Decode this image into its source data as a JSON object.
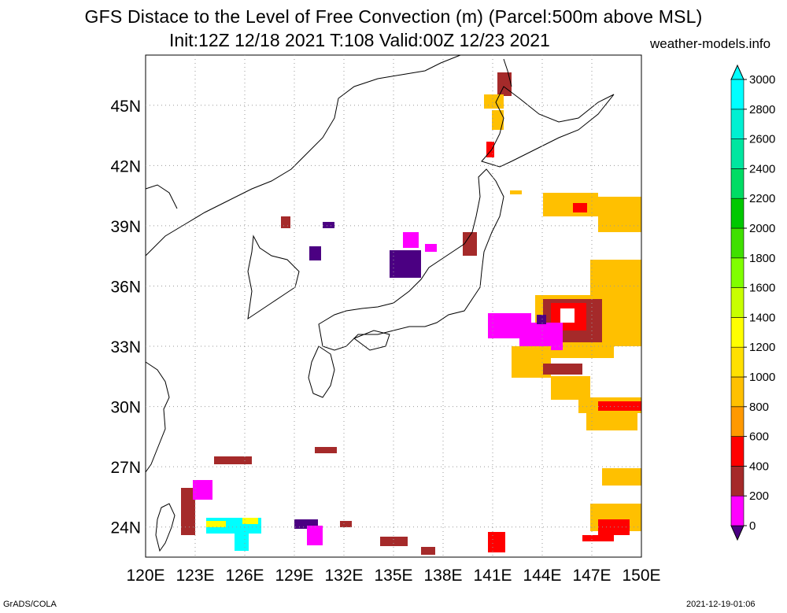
{
  "header": {
    "title": "GFS Distace to the Level of Free Convection (m) (Parcel:500m above MSL)",
    "subtitle": "Init:12Z 12/18 2021 T:108 Valid:00Z 12/23 2021",
    "site": "weather-models.info"
  },
  "footer": {
    "left": "GrADS/COLA",
    "right": "2021-12-19-01:06"
  },
  "map": {
    "lon_range": [
      120,
      150
    ],
    "lat_range": [
      22.5,
      47.5
    ],
    "lon_ticks": [
      "120E",
      "123E",
      "126E",
      "129E",
      "132E",
      "135E",
      "138E",
      "141E",
      "144E",
      "147E",
      "150E"
    ],
    "lat_ticks": [
      "24N",
      "27N",
      "30N",
      "33N",
      "36N",
      "39N",
      "42N",
      "45N"
    ],
    "grid": "dotted"
  },
  "colorbar": {
    "levels": [
      "0",
      "200",
      "400",
      "600",
      "800",
      "1000",
      "1200",
      "1400",
      "1600",
      "1800",
      "2000",
      "2200",
      "2400",
      "2600",
      "2800",
      "3000"
    ],
    "colors": [
      "#4b0082",
      "#ff00ff",
      "#a52a2a",
      "#ff0000",
      "#ff9900",
      "#ffc000",
      "#ffe000",
      "#ffff00",
      "#c8ff00",
      "#80ff00",
      "#40e000",
      "#00c800",
      "#00dc64",
      "#00e6a0",
      "#00f0d2",
      "#00ffff"
    ],
    "under_color": "#4b0082",
    "over_color": "#00ffff"
  }
}
